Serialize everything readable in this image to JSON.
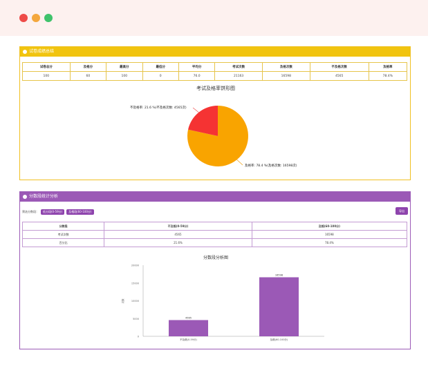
{
  "window": {
    "controls": [
      "close",
      "minimize",
      "maximize"
    ]
  },
  "summary": {
    "title": "试卷成绩总结",
    "headers": [
      "试卷总分",
      "及格分",
      "最高分",
      "最低分",
      "平均分",
      "考试次数",
      "及格次数",
      "不及格次数",
      "及格率"
    ],
    "row": [
      "100",
      "60",
      "100",
      "0",
      "76.0",
      "21163",
      "16598",
      "4565",
      "78.4%"
    ]
  },
  "pie": {
    "title": "考试及格率饼形图",
    "label_fail": "不及格率: 21.6 %(不及格次数: 4565次)",
    "label_pass": "及格率: 78.4 %(及格次数: 16598次)",
    "colors": {
      "pass": "#f9a400",
      "fail": "#f53333"
    }
  },
  "score_panel": {
    "title": "分数段统计分析",
    "filter_label": "筛选分数段：",
    "chips": [
      "低分段(0-59分)",
      "及格段(60-100分)"
    ],
    "export_label": "导出",
    "headers": [
      "分数段",
      "不及格(0-59分)",
      "及格(60-100分)"
    ],
    "rows": [
      [
        "考试次数",
        "4565",
        "16598"
      ],
      [
        "百分比",
        "21.6%",
        "78.4%"
      ]
    ]
  },
  "chart_data": {
    "type": "bar",
    "title": "分数段分析图",
    "categories": [
      "不及格(0-59分)",
      "及格(60-100分)"
    ],
    "values": [
      4565,
      16598
    ],
    "ylabel": "次数",
    "ylim": [
      0,
      20000
    ],
    "yticks": [
      "0",
      "5000",
      "10000",
      "15000",
      "20000"
    ],
    "bar_color": "#9b59b6",
    "value_labels": [
      "4565",
      "16598"
    ]
  }
}
